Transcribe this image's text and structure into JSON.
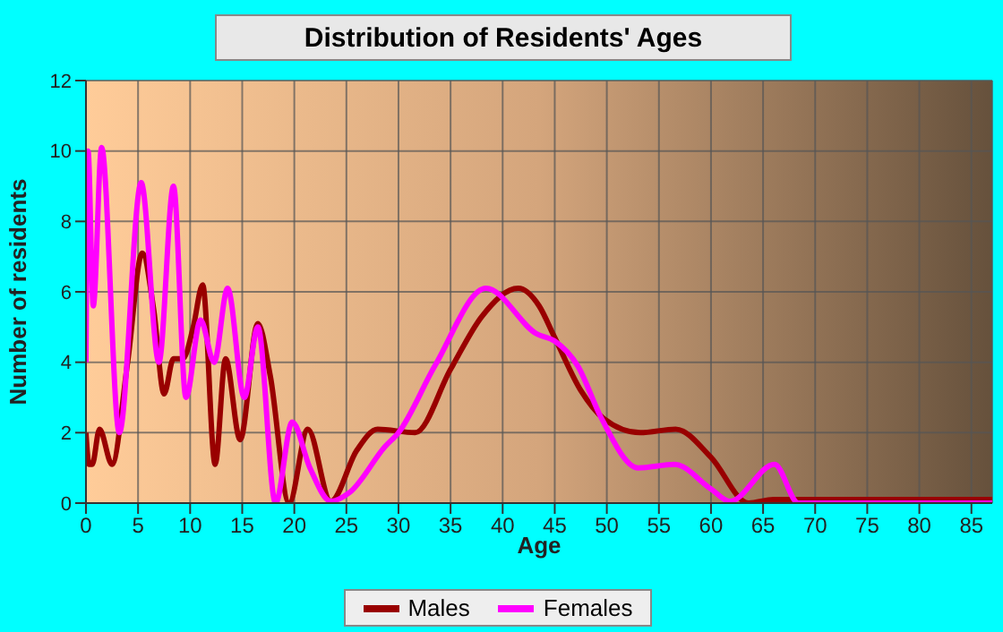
{
  "chart_data": {
    "type": "line",
    "title": "Distribution of Residents' Ages",
    "xlabel": "Age",
    "ylabel": "Number of residents",
    "xlim": [
      0,
      87
    ],
    "xticks": [
      0,
      5,
      10,
      15,
      20,
      25,
      30,
      35,
      40,
      45,
      50,
      55,
      60,
      65,
      70,
      75,
      80,
      85
    ],
    "ylim": [
      0,
      12
    ],
    "yticks": [
      0,
      2,
      4,
      6,
      8,
      10,
      12
    ],
    "grid": true,
    "legend": "bottom",
    "marker": "none",
    "line_style": "solid",
    "series": [
      {
        "name": "Males",
        "color": "#990000",
        "x": [
          0,
          0.3,
          0.6,
          1.3,
          2.5,
          4,
          5.4,
          6.5,
          7.5,
          8.4,
          9.3,
          10.3,
          11.2,
          12.4,
          13.4,
          14.8,
          16.5,
          17.7,
          19.5,
          21.3,
          23.5,
          26,
          28,
          31.6,
          35,
          38,
          41.5,
          43.5,
          45,
          47.5,
          49.7,
          53.2,
          56.6,
          60,
          63.6,
          66,
          70,
          75,
          80,
          87
        ],
        "values": [
          2,
          1.1,
          1.1,
          2.1,
          1.1,
          4,
          7.1,
          5.5,
          3.1,
          4.1,
          4.1,
          5,
          6.2,
          1.1,
          4.1,
          1.8,
          5.1,
          3.6,
          0,
          2.1,
          0.05,
          1.5,
          2.1,
          2,
          3.8,
          5.3,
          6.1,
          5.6,
          4.7,
          3.2,
          2.4,
          2,
          2.1,
          1.3,
          0,
          0.1,
          0.1,
          0.1,
          0.1,
          0.1
        ]
      },
      {
        "name": "Females",
        "color": "#ff00ff",
        "x": [
          0,
          0.2,
          0.7,
          1.5,
          3.2,
          5.3,
          7,
          8.4,
          9.6,
          11,
          12.3,
          13.6,
          15.2,
          16.5,
          18.2,
          19.8,
          21.5,
          23.5,
          25.3,
          28.7,
          30,
          33.5,
          38.4,
          43.3,
          45,
          47.2,
          49.5,
          53,
          56.5,
          60,
          61.8,
          66.1,
          68.4,
          71,
          87
        ],
        "values": [
          4,
          10,
          5.6,
          10.1,
          2,
          9.1,
          4,
          9,
          3,
          5.2,
          4,
          6.1,
          3,
          5,
          0,
          2.3,
          1,
          0.05,
          0.3,
          1.6,
          2,
          3.9,
          6.1,
          4.8,
          4.6,
          3.9,
          2.4,
          1,
          1.1,
          0.4,
          0.05,
          1.1,
          0,
          0,
          0
        ]
      }
    ]
  }
}
